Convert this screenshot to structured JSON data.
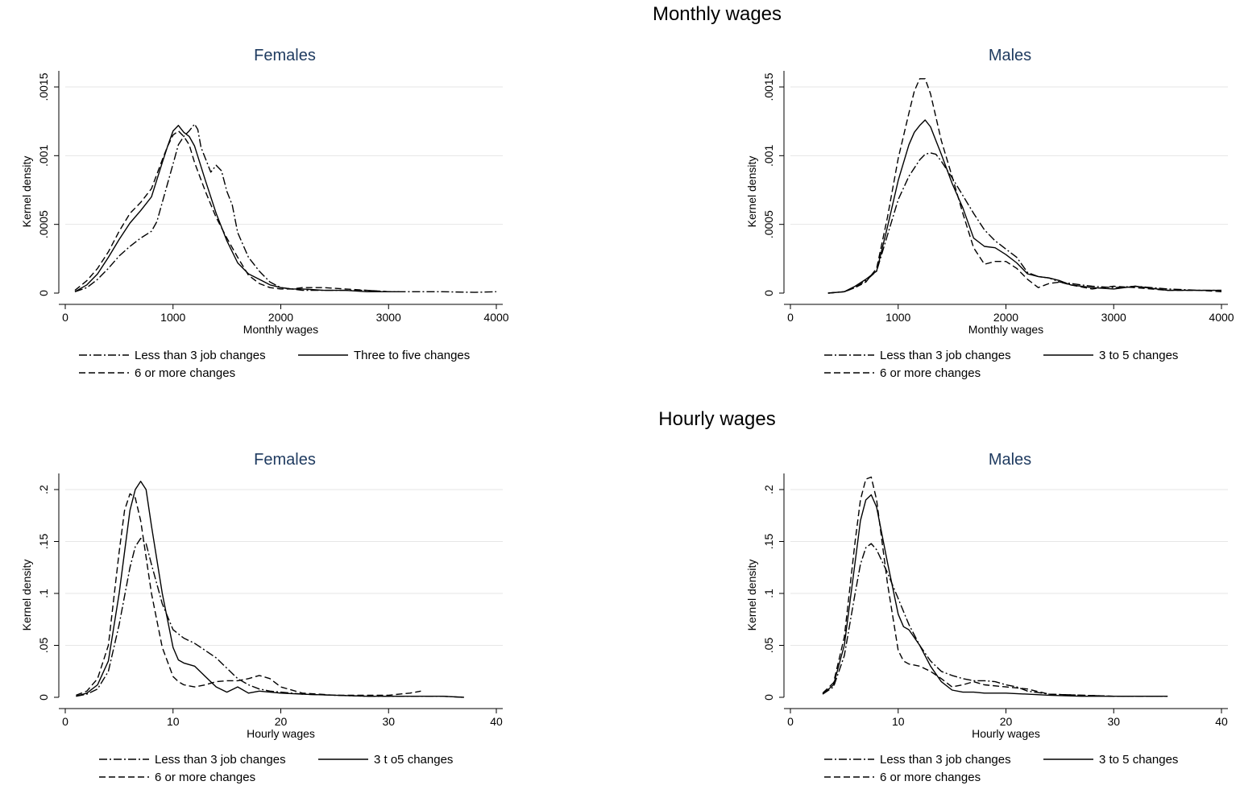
{
  "section_titles": {
    "monthly": "Monthly wages",
    "hourly": "Hourly wages"
  },
  "chart_data": [
    {
      "id": "monthly-females",
      "type": "line",
      "title": "Females",
      "xlabel": "Monthly wages",
      "ylabel": "Kernel density",
      "xlim": [
        0,
        4000
      ],
      "ylim": [
        0,
        0.0015
      ],
      "xticks": [
        0,
        1000,
        2000,
        3000,
        4000
      ],
      "yticks": [
        0,
        0.0005,
        0.001,
        0.0015
      ],
      "ytick_labels": [
        "0",
        ".0005",
        ".001",
        ".0015"
      ],
      "grid": true,
      "legend_rows": [
        [
          0,
          1
        ],
        [
          2
        ]
      ],
      "series": [
        {
          "name": "Less than 3 job changes",
          "style": "dashdot",
          "x": [
            90,
            200,
            300,
            400,
            500,
            600,
            700,
            800,
            850,
            900,
            950,
            1000,
            1050,
            1100,
            1150,
            1200,
            1230,
            1260,
            1300,
            1350,
            1400,
            1450,
            1500,
            1550,
            1600,
            1700,
            1800,
            1900,
            2000,
            2200,
            2400,
            2600,
            2800,
            3000,
            3200,
            3500,
            3800,
            4000
          ],
          "y": [
            1e-05,
            4e-05,
            0.0001,
            0.00018,
            0.00027,
            0.00034,
            0.0004,
            0.00045,
            0.00052,
            0.00066,
            0.0008,
            0.00094,
            0.00108,
            0.00114,
            0.00118,
            0.00123,
            0.00119,
            0.00106,
            0.00098,
            0.00088,
            0.00093,
            0.00089,
            0.00074,
            0.00064,
            0.00044,
            0.00026,
            0.00016,
            8e-05,
            4e-05,
            2e-05,
            2e-05,
            2e-05,
            2e-05,
            1e-05,
            1e-05,
            1e-05,
            5e-06,
            1e-05
          ]
        },
        {
          "name": "Three to five changes",
          "style": "solid",
          "x": [
            90,
            200,
            300,
            400,
            500,
            600,
            700,
            800,
            900,
            950,
            1000,
            1050,
            1100,
            1150,
            1200,
            1300,
            1400,
            1500,
            1600,
            1700,
            1800,
            1900,
            2000,
            2100,
            2200,
            2400,
            2600,
            2800,
            3000,
            3100
          ],
          "y": [
            1e-05,
            6e-05,
            0.00014,
            0.00026,
            0.00039,
            0.00051,
            0.0006,
            0.0007,
            0.00095,
            0.00107,
            0.00118,
            0.00122,
            0.00117,
            0.00114,
            0.00107,
            0.00082,
            0.00058,
            0.00038,
            0.00022,
            0.00014,
            0.0001,
            6e-05,
            4e-05,
            3e-05,
            3e-05,
            2e-05,
            2e-05,
            1e-05,
            1e-05,
            1e-05
          ]
        },
        {
          "name": "6 or more changes",
          "style": "dashed",
          "x": [
            90,
            200,
            300,
            400,
            500,
            600,
            700,
            800,
            900,
            950,
            1000,
            1050,
            1100,
            1150,
            1200,
            1300,
            1400,
            1500,
            1600,
            1700,
            1800,
            1900,
            2000,
            2100,
            2200,
            2400,
            2600,
            2800,
            3000
          ],
          "y": [
            2e-05,
            9e-05,
            0.00018,
            0.0003,
            0.00045,
            0.00058,
            0.00066,
            0.00076,
            0.00097,
            0.00107,
            0.00115,
            0.00118,
            0.00114,
            0.00108,
            0.00095,
            0.00074,
            0.00055,
            0.0004,
            0.00026,
            0.00013,
            7e-05,
            4e-05,
            3e-05,
            3e-05,
            4e-05,
            4e-05,
            3e-05,
            2e-05,
            1e-05
          ]
        }
      ]
    },
    {
      "id": "monthly-males",
      "type": "line",
      "title": "Males",
      "xlabel": "Monthly wages",
      "ylabel": "Kernel density",
      "xlim": [
        0,
        4000
      ],
      "ylim": [
        0,
        0.0015
      ],
      "xticks": [
        0,
        1000,
        2000,
        3000,
        4000
      ],
      "yticks": [
        0,
        0.0005,
        0.001,
        0.0015
      ],
      "ytick_labels": [
        "0",
        ".0005",
        ".001",
        ".0015"
      ],
      "grid": true,
      "legend_rows": [
        [
          0,
          1
        ],
        [
          2
        ]
      ],
      "series": [
        {
          "name": "Less than 3 job changes",
          "style": "dashdot",
          "x": [
            350,
            500,
            600,
            700,
            800,
            900,
            1000,
            1100,
            1200,
            1250,
            1300,
            1350,
            1400,
            1500,
            1600,
            1700,
            1800,
            1900,
            2000,
            2100,
            2200,
            2300,
            2400,
            2500,
            2600,
            2800,
            3000,
            3200,
            3500,
            3800,
            4000
          ],
          "y": [
            0.0,
            1e-05,
            4e-05,
            9e-05,
            0.00016,
            0.00042,
            0.00068,
            0.00085,
            0.00097,
            0.00101,
            0.00102,
            0.00101,
            0.00096,
            0.00084,
            0.00071,
            0.00058,
            0.00046,
            0.00038,
            0.00032,
            0.00026,
            0.00015,
            0.00012,
            0.00011,
            8e-05,
            7e-05,
            5e-05,
            4e-05,
            5e-05,
            3e-05,
            2e-05,
            2e-05
          ]
        },
        {
          "name": "3 to 5 changes",
          "style": "solid",
          "x": [
            350,
            500,
            600,
            700,
            800,
            900,
            1000,
            1100,
            1150,
            1200,
            1250,
            1300,
            1350,
            1400,
            1500,
            1600,
            1700,
            1800,
            1900,
            2000,
            2100,
            2200,
            2300,
            2400,
            2500,
            2600,
            2800,
            3000,
            3200,
            3500,
            3800,
            4000
          ],
          "y": [
            0.0,
            1e-05,
            5e-05,
            0.0001,
            0.00016,
            0.00048,
            0.00082,
            0.00108,
            0.00117,
            0.00122,
            0.00126,
            0.00121,
            0.00111,
            0.00101,
            0.0008,
            0.00062,
            0.0004,
            0.00034,
            0.00033,
            0.00028,
            0.00022,
            0.00014,
            0.00012,
            0.00011,
            9e-05,
            6e-05,
            4e-05,
            3e-05,
            5e-05,
            2e-05,
            2e-05,
            2e-05
          ]
        },
        {
          "name": "6 or more changes",
          "style": "dashed",
          "x": [
            350,
            500,
            600,
            700,
            800,
            900,
            1000,
            1100,
            1150,
            1200,
            1250,
            1300,
            1350,
            1400,
            1500,
            1600,
            1700,
            1800,
            1900,
            2000,
            2100,
            2200,
            2300,
            2400,
            2500,
            2600,
            2800,
            3000,
            3200,
            3500,
            3800,
            4000
          ],
          "y": [
            0.0,
            1e-05,
            4e-05,
            8e-05,
            0.00018,
            0.00055,
            0.00098,
            0.00131,
            0.00147,
            0.00156,
            0.00156,
            0.00145,
            0.00128,
            0.00111,
            0.00085,
            0.00058,
            0.00033,
            0.00021,
            0.00023,
            0.00023,
            0.00018,
            0.0001,
            4e-05,
            7e-05,
            8e-05,
            6e-05,
            3e-05,
            5e-05,
            4e-05,
            2e-05,
            2e-05,
            1e-05
          ]
        }
      ]
    },
    {
      "id": "hourly-females",
      "type": "line",
      "title": "Females",
      "xlabel": "Hourly wages",
      "ylabel": "Kernel density",
      "xlim": [
        0,
        40
      ],
      "ylim": [
        0,
        0.2
      ],
      "xticks": [
        0,
        10,
        20,
        30,
        40
      ],
      "yticks": [
        0,
        0.05,
        0.1,
        0.15,
        0.2
      ],
      "ytick_labels": [
        "0",
        ".05",
        ".1",
        ".15",
        ".2"
      ],
      "grid": true,
      "legend_rows": [
        [
          0,
          1
        ],
        [
          2
        ]
      ],
      "series": [
        {
          "name": "Less than 3 job changes",
          "style": "dashdot",
          "x": [
            1,
            2,
            3,
            4,
            5,
            6,
            6.5,
            7,
            7.5,
            8,
            9,
            10,
            11,
            12,
            13,
            14,
            15,
            16,
            17,
            18,
            19,
            20,
            22,
            25,
            28,
            30,
            33,
            35,
            37
          ],
          "y": [
            0.001,
            0.003,
            0.008,
            0.025,
            0.07,
            0.125,
            0.145,
            0.153,
            0.148,
            0.128,
            0.09,
            0.065,
            0.057,
            0.052,
            0.045,
            0.038,
            0.028,
            0.018,
            0.012,
            0.008,
            0.006,
            0.005,
            0.003,
            0.002,
            0.001,
            0.001,
            0.001,
            0.001,
            0.0
          ]
        },
        {
          "name": "3 t o5 changes",
          "style": "solid",
          "x": [
            1,
            2,
            3,
            4,
            5,
            6,
            6.5,
            7,
            7.5,
            8,
            9,
            10,
            10.5,
            11,
            12,
            13,
            14,
            15,
            16,
            17,
            18,
            19,
            20,
            22,
            25,
            28,
            30,
            32,
            35,
            37
          ],
          "y": [
            0.001,
            0.004,
            0.012,
            0.035,
            0.1,
            0.18,
            0.2,
            0.208,
            0.2,
            0.165,
            0.1,
            0.048,
            0.036,
            0.033,
            0.03,
            0.02,
            0.01,
            0.005,
            0.01,
            0.004,
            0.006,
            0.005,
            0.004,
            0.003,
            0.002,
            0.001,
            0.001,
            0.001,
            0.001,
            0.0
          ]
        },
        {
          "name": "6 or more changes",
          "style": "dashed",
          "x": [
            1,
            2,
            3,
            4,
            5,
            5.5,
            6,
            6.5,
            7,
            8,
            9,
            10,
            10.5,
            11,
            12,
            13,
            14,
            15,
            16,
            17,
            18,
            19,
            20,
            22,
            25,
            28,
            30,
            32,
            33
          ],
          "y": [
            0.002,
            0.006,
            0.018,
            0.05,
            0.14,
            0.18,
            0.196,
            0.192,
            0.17,
            0.1,
            0.048,
            0.02,
            0.015,
            0.012,
            0.01,
            0.012,
            0.015,
            0.016,
            0.016,
            0.018,
            0.021,
            0.018,
            0.01,
            0.004,
            0.002,
            0.002,
            0.002,
            0.004,
            0.006
          ]
        }
      ]
    },
    {
      "id": "hourly-males",
      "type": "line",
      "title": "Males",
      "xlabel": "Hourly wages",
      "ylabel": "Kernel density",
      "xlim": [
        0,
        40
      ],
      "ylim": [
        0,
        0.2
      ],
      "xticks": [
        0,
        10,
        20,
        30,
        40
      ],
      "yticks": [
        0,
        0.05,
        0.1,
        0.15,
        0.2
      ],
      "ytick_labels": [
        "0",
        ".05",
        ".1",
        ".15",
        ".2"
      ],
      "grid": true,
      "legend_rows": [
        [
          0,
          1
        ],
        [
          2
        ]
      ],
      "series": [
        {
          "name": "Less than 3 job changes",
          "style": "dashdot",
          "x": [
            3,
            4,
            5,
            6,
            6.5,
            7,
            7.5,
            8,
            9,
            10,
            11,
            12,
            13,
            14,
            15,
            16,
            17,
            18,
            19,
            20,
            21,
            22,
            24,
            27,
            30,
            32,
            35
          ],
          "y": [
            0.003,
            0.01,
            0.04,
            0.1,
            0.128,
            0.144,
            0.148,
            0.142,
            0.12,
            0.095,
            0.07,
            0.05,
            0.035,
            0.025,
            0.021,
            0.018,
            0.016,
            0.016,
            0.015,
            0.012,
            0.01,
            0.006,
            0.003,
            0.002,
            0.001,
            0.001,
            0.001
          ]
        },
        {
          "name": "3 to 5 changes",
          "style": "solid",
          "x": [
            3,
            4,
            5,
            6,
            6.5,
            7,
            7.5,
            8,
            9,
            10,
            10.5,
            11,
            12,
            13,
            14,
            15,
            16,
            17,
            18,
            20,
            22,
            24,
            27,
            30,
            32,
            35
          ],
          "y": [
            0.003,
            0.012,
            0.05,
            0.13,
            0.17,
            0.19,
            0.195,
            0.183,
            0.13,
            0.08,
            0.068,
            0.065,
            0.05,
            0.03,
            0.015,
            0.007,
            0.005,
            0.005,
            0.004,
            0.004,
            0.003,
            0.002,
            0.001,
            0.001,
            0.001,
            0.001
          ]
        },
        {
          "name": "6 or more changes",
          "style": "dashed",
          "x": [
            3,
            4,
            5,
            6,
            6.5,
            7,
            7.5,
            8,
            9,
            10,
            10.5,
            11,
            12,
            13,
            14,
            15,
            16,
            17,
            18,
            20,
            22,
            24,
            27,
            30,
            32,
            35
          ],
          "y": [
            0.004,
            0.014,
            0.058,
            0.15,
            0.19,
            0.21,
            0.212,
            0.19,
            0.11,
            0.045,
            0.035,
            0.032,
            0.03,
            0.025,
            0.018,
            0.01,
            0.012,
            0.015,
            0.012,
            0.01,
            0.008,
            0.003,
            0.002,
            0.001,
            0.001,
            0.001
          ]
        }
      ]
    }
  ]
}
